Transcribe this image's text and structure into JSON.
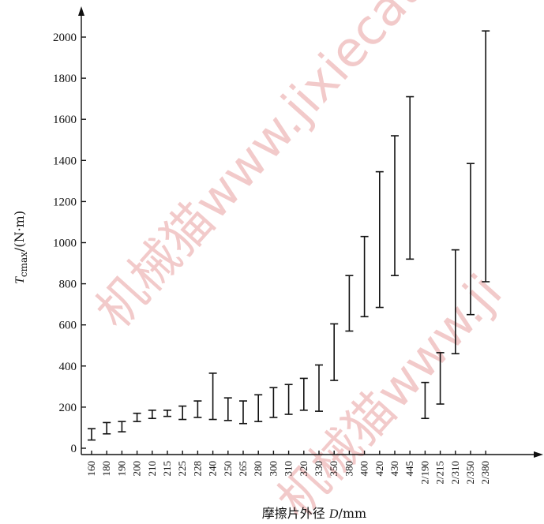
{
  "chart_data": {
    "type": "range-bar",
    "ylabel": "T_cmax/(N·m)",
    "ylabel_main": "T",
    "ylabel_sub": "cmax",
    "ylabel_unit": "/(N·m)",
    "xlabel": "摩擦片外径 D/mm",
    "xlabel_prefix": "摩擦片外径 ",
    "xlabel_var": "D",
    "xlabel_unit": "/mm",
    "ylim": [
      0,
      2000
    ],
    "yticks": [
      "0",
      "200",
      "400",
      "600",
      "800",
      "1000",
      "1200",
      "1400",
      "1600",
      "1800",
      "2000"
    ],
    "grid": false,
    "categories": [
      "160",
      "180",
      "190",
      "200",
      "210",
      "215",
      "225",
      "228",
      "240",
      "250",
      "265",
      "280",
      "300",
      "310",
      "320",
      "330",
      "350",
      "380",
      "400",
      "420",
      "430",
      "445",
      "2/190",
      "2/215",
      "2/310",
      "2/350",
      "2/380"
    ],
    "low": [
      40,
      70,
      80,
      130,
      145,
      155,
      140,
      150,
      140,
      135,
      120,
      130,
      150,
      165,
      185,
      180,
      330,
      570,
      640,
      685,
      840,
      920,
      145,
      215,
      460,
      650,
      810
    ],
    "high": [
      95,
      125,
      130,
      170,
      185,
      185,
      205,
      230,
      365,
      245,
      230,
      260,
      295,
      310,
      340,
      405,
      605,
      840,
      1030,
      1345,
      1520,
      1710,
      320,
      465,
      965,
      1385,
      2030
    ]
  },
  "watermark": {
    "text1": "机械猫www.jixiecat.com",
    "text2": "机械猫www.ji",
    "color": "#e8a0a0"
  }
}
